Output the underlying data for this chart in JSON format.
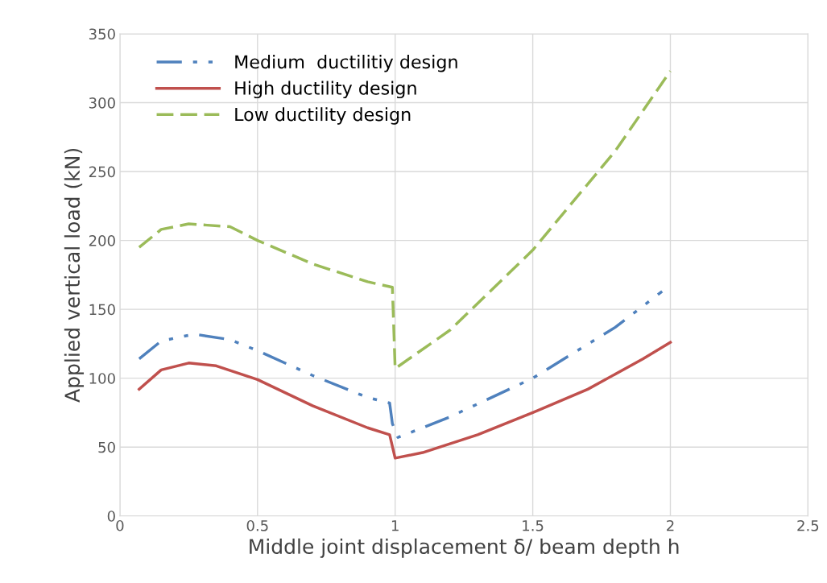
{
  "chart_data": {
    "type": "line",
    "xlabel": "Middle joint displacement δ/ beam depth h",
    "ylabel": "Applied vertical load (kN)",
    "xlim": [
      0,
      2.5
    ],
    "xticks": [
      0,
      0.5,
      1,
      1.5,
      2,
      2.5
    ],
    "ylim": [
      0,
      350
    ],
    "yticks": [
      0,
      50,
      100,
      150,
      200,
      250,
      300,
      350
    ],
    "grid": true,
    "legend": "top left",
    "series": [
      {
        "name": "Medium  ductilitiy design",
        "color": "#4f81bd",
        "line_style": "dashdotdot",
        "x": [
          0.07,
          0.15,
          0.27,
          0.4,
          0.5,
          0.7,
          0.9,
          0.98,
          0.99,
          1.01,
          1.2,
          1.5,
          1.8,
          1.97
        ],
        "values": [
          114,
          127,
          132,
          128,
          120,
          102,
          86,
          82,
          67,
          57,
          72,
          100,
          137,
          163
        ]
      },
      {
        "name": "High ductility design",
        "color": "#c0504d",
        "line_style": "solid",
        "x": [
          0.07,
          0.15,
          0.25,
          0.35,
          0.5,
          0.7,
          0.9,
          0.98,
          1.0,
          1.1,
          1.3,
          1.5,
          1.7,
          1.9,
          2.0
        ],
        "values": [
          92,
          106,
          111,
          109,
          99,
          80,
          64,
          59,
          42,
          46,
          59,
          75,
          92,
          114,
          126
        ]
      },
      {
        "name": "Low ductility design",
        "color": "#9bbb59",
        "line_style": "dashed",
        "x": [
          0.07,
          0.15,
          0.25,
          0.4,
          0.5,
          0.7,
          0.9,
          0.99,
          1.0,
          1.2,
          1.5,
          1.8,
          2.0
        ],
        "values": [
          195,
          208,
          212,
          210,
          200,
          183,
          170,
          166,
          107,
          135,
          193,
          265,
          323
        ]
      }
    ]
  }
}
